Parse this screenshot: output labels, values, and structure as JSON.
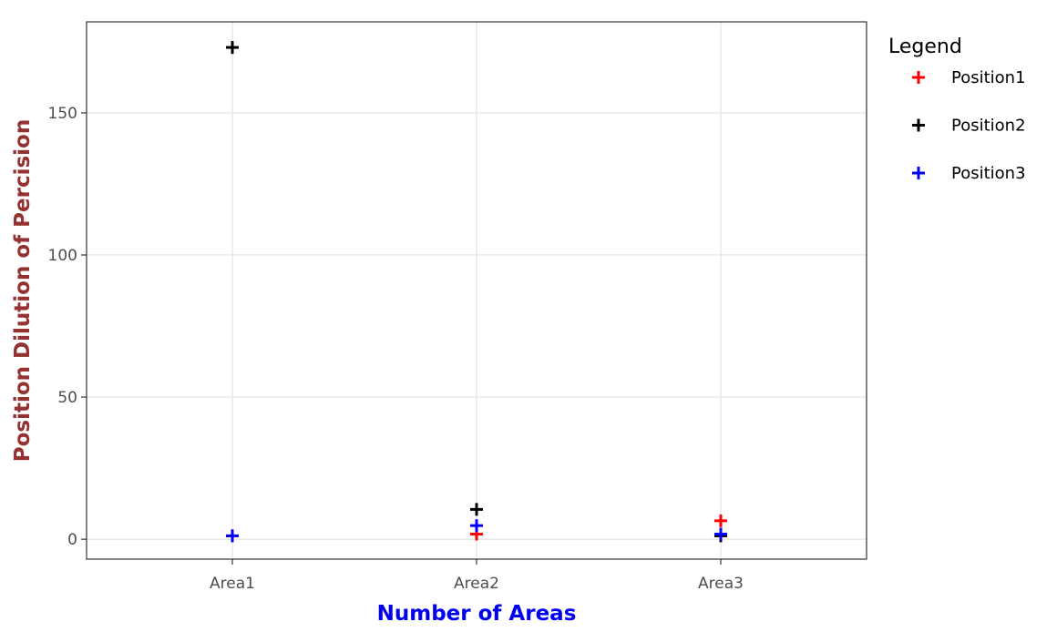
{
  "chart_data": {
    "type": "scatter",
    "categories": [
      "Area1",
      "Area2",
      "Area3"
    ],
    "series": [
      {
        "name": "Position1",
        "color": "#ff0000",
        "values": [
          1.2,
          1.8,
          6.5
        ]
      },
      {
        "name": "Position2",
        "color": "#000000",
        "values": [
          173,
          10.5,
          1.2
        ]
      },
      {
        "name": "Position3",
        "color": "#0000ff",
        "values": [
          1.2,
          4.8,
          1.8
        ]
      }
    ],
    "xlabel": "Number of Areas",
    "ylabel": "Position Dilution of Percision",
    "xlabel_color": "#0000ee",
    "ylabel_color": "#943131",
    "yticks": [
      0,
      50,
      100,
      150
    ],
    "ylim": [
      -7,
      182
    ],
    "grid": true,
    "legend": {
      "title": "Legend",
      "placement": "right"
    },
    "marker": "plus"
  }
}
